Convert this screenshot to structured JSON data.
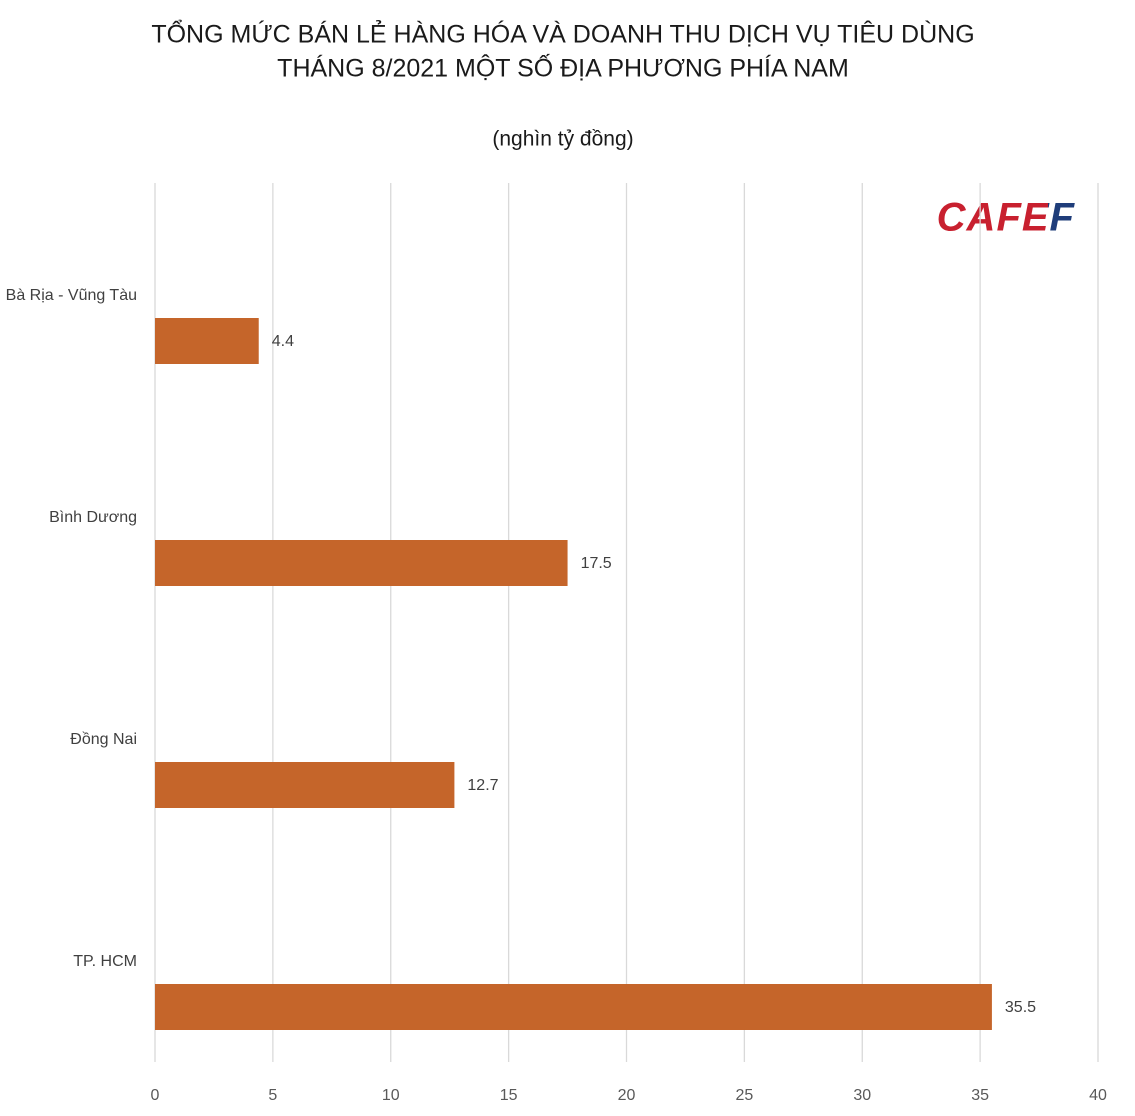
{
  "chart_data": {
    "type": "bar",
    "orientation": "horizontal",
    "title": [
      "TỔNG MỨC BÁN LẺ HÀNG HÓA VÀ DOANH THU DỊCH VỤ TIÊU DÙNG",
      "THÁNG 8/2021 MỘT SỐ ĐỊA PHƯƠNG PHÍA NAM"
    ],
    "subtitle": "(nghìn tỷ đồng)",
    "logo": "CAFEF",
    "categories": [
      "Bà Rịa - Vũng Tàu",
      "Bình Dương",
      "Đồng Nai",
      "TP. HCM"
    ],
    "values": [
      4.4,
      17.5,
      12.7,
      35.5
    ],
    "color": "#c5652a",
    "xlim": [
      0,
      40
    ],
    "xticks": [
      0,
      5,
      10,
      15,
      20,
      25,
      30,
      35,
      40
    ],
    "grid": true
  }
}
